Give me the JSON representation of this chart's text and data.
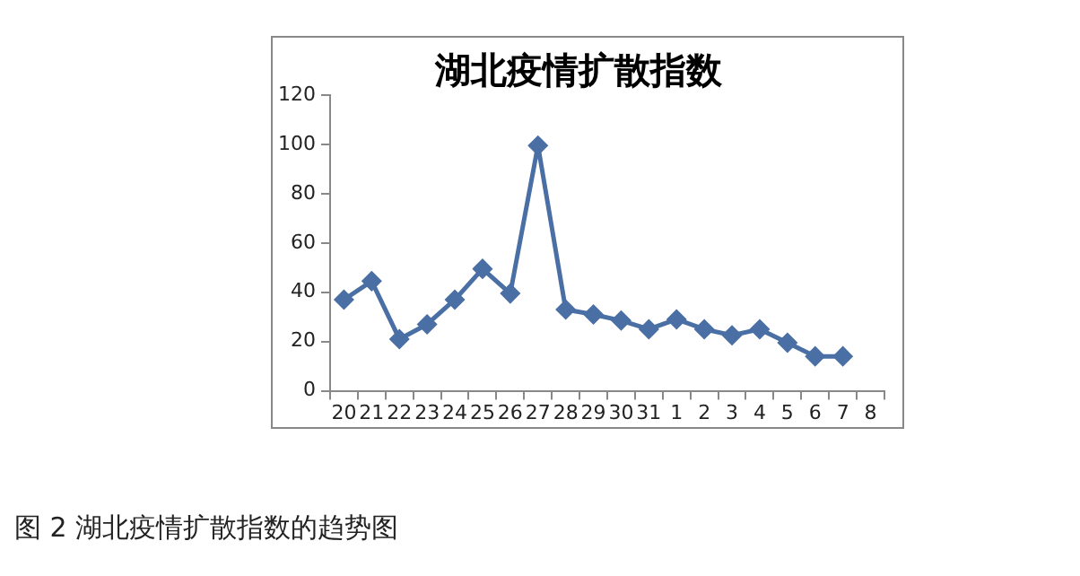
{
  "chart_data": {
    "type": "line",
    "title": "湖北疫情扩散指数",
    "categories": [
      "20",
      "21",
      "22",
      "23",
      "24",
      "25",
      "26",
      "27",
      "28",
      "29",
      "30",
      "31",
      "1",
      "2",
      "3",
      "4",
      "5",
      "6",
      "7",
      "8"
    ],
    "series": [
      {
        "color": "#4a6fa5",
        "values": [
          37,
          44.5,
          21,
          27,
          37,
          49.5,
          39.5,
          99.5,
          33,
          31,
          28.5,
          25,
          29,
          25,
          22.5,
          25,
          19.5,
          14,
          14,
          null
        ]
      }
    ],
    "ylim": [
      0,
      120
    ],
    "yticks": [
      0,
      20,
      40,
      60,
      80,
      100,
      120
    ],
    "grid": false,
    "legend": false,
    "marker": "diamond",
    "line_style": "solid",
    "annotations": [
      "图 2 湖北疫情扩散指数的趋势图"
    ]
  }
}
